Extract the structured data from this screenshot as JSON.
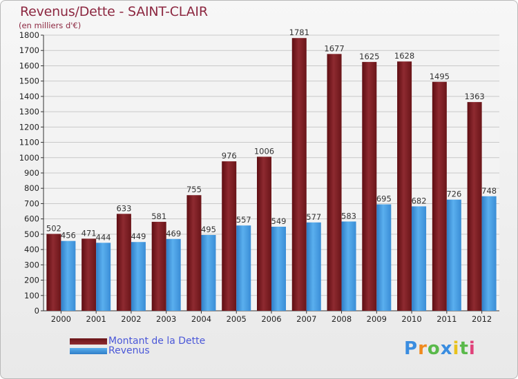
{
  "title": "Revenus/Dette - SAINT-CLAIR",
  "subtitle": "(en milliers d'€)",
  "logo": {
    "text": "Proxiti",
    "letters": [
      "P",
      "r",
      "o",
      "x",
      "i",
      "t",
      "i"
    ],
    "colors": [
      "#3a8de0",
      "#f08a1e",
      "#59b94a",
      "#3a8de0",
      "#e8c21c",
      "#59b94a",
      "#e0427a"
    ]
  },
  "colors": {
    "dette": "#8c2a2e",
    "revenus": "#4ea3e6",
    "axis": "#333333",
    "grid": "#c8c8c8"
  },
  "chart_data": {
    "type": "bar",
    "title": "Revenus/Dette - SAINT-CLAIR",
    "ylabel": "(en milliers d'€)",
    "xlabel": "",
    "ylim": [
      0,
      1800
    ],
    "ytick_step": 100,
    "yticks": [
      "0",
      "100",
      "200",
      "300",
      "400",
      "500",
      "600",
      "700",
      "800",
      "900",
      "1000",
      "1100",
      "1200",
      "1300",
      "1400",
      "1500",
      "1600",
      "1700",
      "1800"
    ],
    "categories": [
      "2000",
      "2001",
      "2002",
      "2003",
      "2004",
      "2005",
      "2006",
      "2007",
      "2008",
      "2009",
      "2010",
      "2011",
      "2012"
    ],
    "series": [
      {
        "name": "Montant de la Dette",
        "key": "dette",
        "values": [
          502,
          471,
          633,
          581,
          755,
          976,
          1006,
          1781,
          1677,
          1625,
          1628,
          1495,
          1363
        ],
        "labels": [
          "502",
          "471",
          "633",
          "581",
          "755",
          "976",
          "1006",
          "1781",
          "1677",
          "1625",
          "1628",
          "1495",
          "1363"
        ]
      },
      {
        "name": "Revenus",
        "key": "revenus",
        "values": [
          456,
          444,
          449,
          469,
          495,
          557,
          549,
          577,
          583,
          695,
          682,
          726,
          748
        ],
        "labels": [
          "456",
          "444",
          "449",
          "469",
          "495",
          "557",
          "549",
          "577",
          "583",
          "695",
          "682",
          "726",
          "748"
        ]
      }
    ],
    "legend": [
      "Montant de la Dette",
      "Revenus"
    ],
    "legend_position": "bottom-left",
    "grid": true
  }
}
